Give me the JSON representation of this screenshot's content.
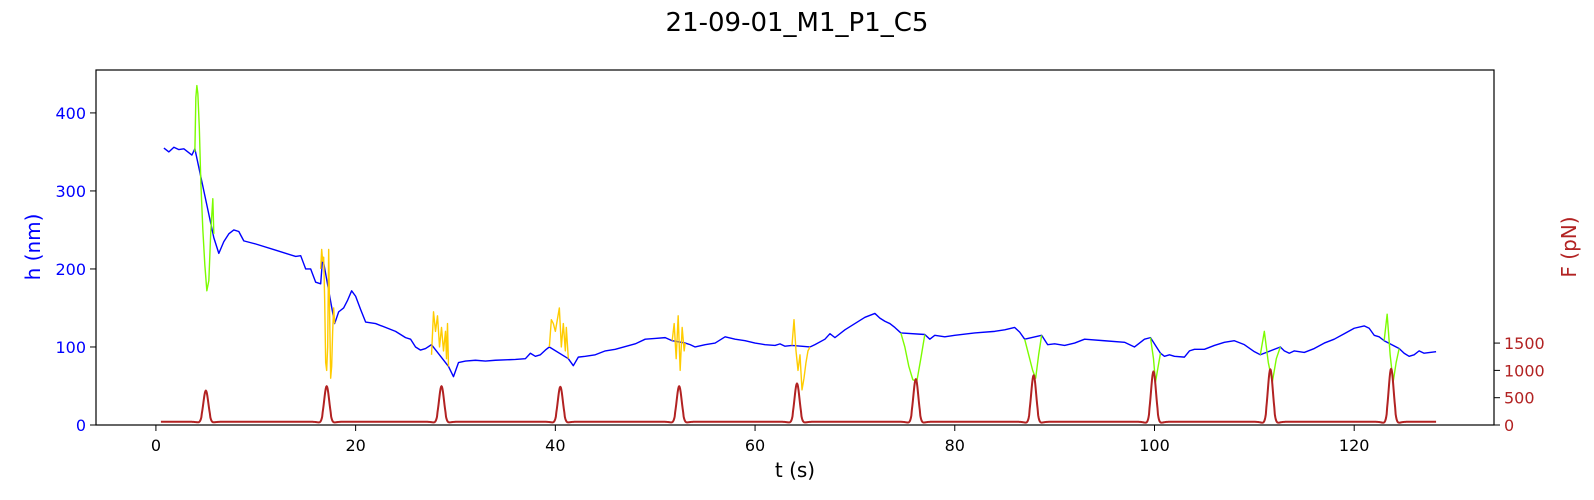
{
  "chart_data": {
    "type": "line",
    "title": "21-09-01_M1_P1_C5",
    "xlabel": "t (s)",
    "ylabel": "h (nm)",
    "ylabel_right": "F (pN)",
    "xlim": [
      -6,
      134
    ],
    "ylim": [
      0,
      455
    ],
    "ylim_right": [
      0,
      6500
    ],
    "xticks": [
      0,
      20,
      40,
      60,
      80,
      100,
      120
    ],
    "yticks": [
      0,
      100,
      200,
      300,
      400
    ],
    "yticks_right": [
      0,
      500,
      1000,
      1500
    ],
    "grid": false,
    "colors": {
      "height_baseline": "#0000ff",
      "height_approach": "#7cfc00",
      "height_oscillation": "#ffcc00",
      "force": "#b22222",
      "left_axis": "#0000ff",
      "right_axis": "#b22222"
    },
    "series": [
      {
        "axis": "left",
        "color": "#0000ff",
        "points": [
          [
            0.8,
            355
          ],
          [
            1.3,
            350
          ],
          [
            1.8,
            356
          ],
          [
            2.3,
            353
          ],
          [
            2.8,
            354
          ],
          [
            3.2,
            350
          ],
          [
            3.6,
            346
          ],
          [
            3.9,
            354
          ],
          [
            5.8,
            240
          ],
          [
            6.3,
            220
          ],
          [
            6.8,
            235
          ],
          [
            7.3,
            245
          ],
          [
            7.8,
            250
          ],
          [
            8.3,
            248
          ],
          [
            8.8,
            236
          ],
          [
            10,
            232
          ],
          [
            12,
            224
          ],
          [
            14,
            216
          ],
          [
            14.5,
            217
          ],
          [
            15,
            200
          ],
          [
            15.5,
            200
          ],
          [
            16,
            183
          ],
          [
            16.5,
            181
          ],
          [
            16.7,
            215
          ],
          [
            17.9,
            130
          ],
          [
            18.3,
            145
          ],
          [
            18.8,
            150
          ],
          [
            19.2,
            160
          ],
          [
            19.6,
            172
          ],
          [
            20,
            165
          ],
          [
            20.5,
            148
          ],
          [
            21,
            132
          ],
          [
            22,
            130
          ],
          [
            24,
            120
          ],
          [
            25,
            112
          ],
          [
            25.5,
            110
          ],
          [
            26,
            100
          ],
          [
            26.5,
            96
          ],
          [
            27,
            98
          ],
          [
            27.6,
            103
          ],
          [
            29.3,
            75
          ],
          [
            29.8,
            62
          ],
          [
            30.3,
            80
          ],
          [
            31,
            82
          ],
          [
            32,
            83
          ],
          [
            33,
            82
          ],
          [
            34,
            83
          ],
          [
            36,
            84
          ],
          [
            37,
            85
          ],
          [
            37.5,
            92
          ],
          [
            38,
            88
          ],
          [
            38.5,
            90
          ],
          [
            39,
            96
          ],
          [
            39.4,
            100
          ],
          [
            41.3,
            85
          ],
          [
            41.8,
            76
          ],
          [
            42.3,
            87
          ],
          [
            43,
            88
          ],
          [
            44,
            90
          ],
          [
            45,
            95
          ],
          [
            46,
            97
          ],
          [
            48,
            104
          ],
          [
            49,
            110
          ],
          [
            50,
            111
          ],
          [
            51,
            112
          ],
          [
            51.7,
            108
          ],
          [
            53,
            105
          ],
          [
            53.5,
            103
          ],
          [
            54,
            100
          ],
          [
            55,
            103
          ],
          [
            56,
            105
          ],
          [
            57,
            113
          ],
          [
            58,
            110
          ],
          [
            59,
            108
          ],
          [
            60,
            105
          ],
          [
            61,
            103
          ],
          [
            62,
            102
          ],
          [
            62.5,
            104
          ],
          [
            63,
            101
          ],
          [
            63.7,
            102
          ],
          [
            65.5,
            100
          ],
          [
            66,
            103
          ],
          [
            67,
            110
          ],
          [
            67.5,
            117
          ],
          [
            68,
            112
          ],
          [
            69,
            122
          ],
          [
            70,
            130
          ],
          [
            71,
            138
          ],
          [
            72,
            143
          ],
          [
            72.5,
            137
          ],
          [
            73,
            133
          ],
          [
            73.5,
            130
          ],
          [
            74,
            125
          ],
          [
            74.6,
            118
          ],
          [
            77,
            116
          ],
          [
            77.5,
            110
          ],
          [
            78,
            115
          ],
          [
            79,
            113
          ],
          [
            80,
            115
          ],
          [
            82,
            118
          ],
          [
            84,
            120
          ],
          [
            85,
            122
          ],
          [
            86,
            125
          ],
          [
            86.5,
            119
          ],
          [
            87,
            110
          ],
          [
            88.7,
            115
          ],
          [
            89.3,
            103
          ],
          [
            90,
            104
          ],
          [
            91,
            102
          ],
          [
            92,
            105
          ],
          [
            93,
            110
          ],
          [
            95,
            108
          ],
          [
            97,
            106
          ],
          [
            98,
            100
          ],
          [
            98.5,
            105
          ],
          [
            99,
            110
          ],
          [
            99.6,
            112
          ],
          [
            100.6,
            92
          ],
          [
            101,
            88
          ],
          [
            101.5,
            90
          ],
          [
            102,
            88
          ],
          [
            103,
            87
          ],
          [
            103.5,
            95
          ],
          [
            104,
            97
          ],
          [
            105,
            97
          ],
          [
            106,
            102
          ],
          [
            107,
            106
          ],
          [
            108,
            108
          ],
          [
            109,
            103
          ],
          [
            110,
            94
          ],
          [
            110.6,
            90
          ],
          [
            112.6,
            100
          ],
          [
            113,
            95
          ],
          [
            113.5,
            92
          ],
          [
            114,
            95
          ],
          [
            115,
            93
          ],
          [
            116,
            98
          ],
          [
            117,
            105
          ],
          [
            118,
            110
          ],
          [
            119,
            117
          ],
          [
            120,
            124
          ],
          [
            121,
            127
          ],
          [
            121.5,
            124
          ],
          [
            122,
            115
          ],
          [
            122.5,
            113
          ],
          [
            123,
            108
          ],
          [
            124.5,
            98
          ],
          [
            125,
            92
          ],
          [
            125.5,
            88
          ],
          [
            126,
            90
          ],
          [
            126.5,
            95
          ],
          [
            127,
            92
          ],
          [
            128.2,
            94
          ]
        ]
      },
      {
        "axis": "left",
        "color": "#7cfc00",
        "points": [
          [
            3.9,
            350
          ],
          [
            4.0,
            420
          ],
          [
            4.1,
            435
          ],
          [
            4.2,
            425
          ],
          [
            4.35,
            380
          ],
          [
            4.5,
            310
          ],
          [
            4.7,
            250
          ],
          [
            4.9,
            205
          ],
          [
            5.1,
            172
          ],
          [
            5.3,
            185
          ],
          [
            5.5,
            250
          ],
          [
            5.7,
            290
          ],
          [
            5.8,
            245
          ]
        ]
      },
      {
        "axis": "left",
        "color": "#ffcc00",
        "points": [
          [
            16.5,
            200
          ],
          [
            16.6,
            225
          ],
          [
            16.7,
            210
          ],
          [
            16.8,
            215
          ],
          [
            16.9,
            160
          ],
          [
            17.0,
            80
          ],
          [
            17.1,
            70
          ],
          [
            17.2,
            100
          ],
          [
            17.3,
            225
          ],
          [
            17.4,
            140
          ],
          [
            17.5,
            60
          ],
          [
            17.6,
            75
          ],
          [
            17.7,
            120
          ],
          [
            17.8,
            150
          ],
          [
            17.9,
            130
          ]
        ]
      },
      {
        "axis": "left",
        "color": "#ffcc00",
        "points": [
          [
            27.6,
            90
          ],
          [
            27.8,
            145
          ],
          [
            28,
            120
          ],
          [
            28.2,
            140
          ],
          [
            28.4,
            100
          ],
          [
            28.6,
            125
          ],
          [
            28.8,
            95
          ],
          [
            29,
            120
          ],
          [
            29.1,
            85
          ],
          [
            29.2,
            130
          ],
          [
            29.3,
            75
          ]
        ]
      },
      {
        "axis": "left",
        "color": "#ffcc00",
        "points": [
          [
            39.4,
            100
          ],
          [
            39.6,
            135
          ],
          [
            39.8,
            130
          ],
          [
            40,
            120
          ],
          [
            40.2,
            135
          ],
          [
            40.4,
            150
          ],
          [
            40.6,
            100
          ],
          [
            40.8,
            130
          ],
          [
            41.0,
            95
          ],
          [
            41.1,
            125
          ],
          [
            41.3,
            85
          ]
        ]
      },
      {
        "axis": "left",
        "color": "#ffcc00",
        "points": [
          [
            51.7,
            108
          ],
          [
            51.9,
            130
          ],
          [
            52.1,
            85
          ],
          [
            52.3,
            140
          ],
          [
            52.5,
            70
          ],
          [
            52.7,
            125
          ],
          [
            52.9,
            95
          ],
          [
            53,
            105
          ]
        ]
      },
      {
        "axis": "left",
        "color": "#ffcc00",
        "points": [
          [
            63.7,
            102
          ],
          [
            63.9,
            135
          ],
          [
            64.1,
            95
          ],
          [
            64.3,
            70
          ],
          [
            64.5,
            90
          ],
          [
            64.7,
            45
          ],
          [
            64.9,
            60
          ],
          [
            65.1,
            80
          ],
          [
            65.3,
            95
          ],
          [
            65.5,
            100
          ]
        ]
      },
      {
        "axis": "left",
        "color": "#7cfc00",
        "points": [
          [
            74.6,
            118
          ],
          [
            75,
            100
          ],
          [
            75.4,
            75
          ],
          [
            75.8,
            58
          ],
          [
            76.2,
            56
          ],
          [
            76.6,
            85
          ],
          [
            77,
            116
          ]
        ]
      },
      {
        "axis": "left",
        "color": "#7cfc00",
        "points": [
          [
            87,
            110
          ],
          [
            87.4,
            90
          ],
          [
            87.8,
            70
          ],
          [
            88.1,
            60
          ],
          [
            88.4,
            90
          ],
          [
            88.7,
            115
          ]
        ]
      },
      {
        "axis": "left",
        "color": "#7cfc00",
        "points": [
          [
            99.6,
            112
          ],
          [
            99.9,
            85
          ],
          [
            100.1,
            55
          ],
          [
            100.3,
            70
          ],
          [
            100.6,
            92
          ]
        ]
      },
      {
        "axis": "left",
        "color": "#7cfc00",
        "points": [
          [
            110.6,
            90
          ],
          [
            111,
            120
          ],
          [
            111.4,
            80
          ],
          [
            111.8,
            55
          ],
          [
            112.2,
            85
          ],
          [
            112.6,
            100
          ]
        ]
      },
      {
        "axis": "left",
        "color": "#7cfc00",
        "points": [
          [
            123,
            108
          ],
          [
            123.3,
            142
          ],
          [
            123.6,
            90
          ],
          [
            123.9,
            55
          ],
          [
            124.2,
            80
          ],
          [
            124.5,
            98
          ]
        ]
      },
      {
        "axis": "right",
        "color": "#b22222",
        "baseline": 60,
        "pulses": [
          {
            "t": 5.0,
            "peak": 570,
            "width": 0.35
          },
          {
            "t": 17.1,
            "peak": 650,
            "width": 0.35
          },
          {
            "t": 28.6,
            "peak": 650,
            "width": 0.35
          },
          {
            "t": 40.5,
            "peak": 640,
            "width": 0.35
          },
          {
            "t": 52.4,
            "peak": 650,
            "width": 0.35
          },
          {
            "t": 64.2,
            "peak": 700,
            "width": 0.35
          },
          {
            "t": 76.1,
            "peak": 780,
            "width": 0.35
          },
          {
            "t": 87.9,
            "peak": 850,
            "width": 0.35
          },
          {
            "t": 99.9,
            "peak": 920,
            "width": 0.35
          },
          {
            "t": 111.6,
            "peak": 960,
            "width": 0.35
          },
          {
            "t": 123.7,
            "peak": 970,
            "width": 0.35
          }
        ],
        "t_range": [
          0.5,
          128.2
        ]
      }
    ]
  }
}
